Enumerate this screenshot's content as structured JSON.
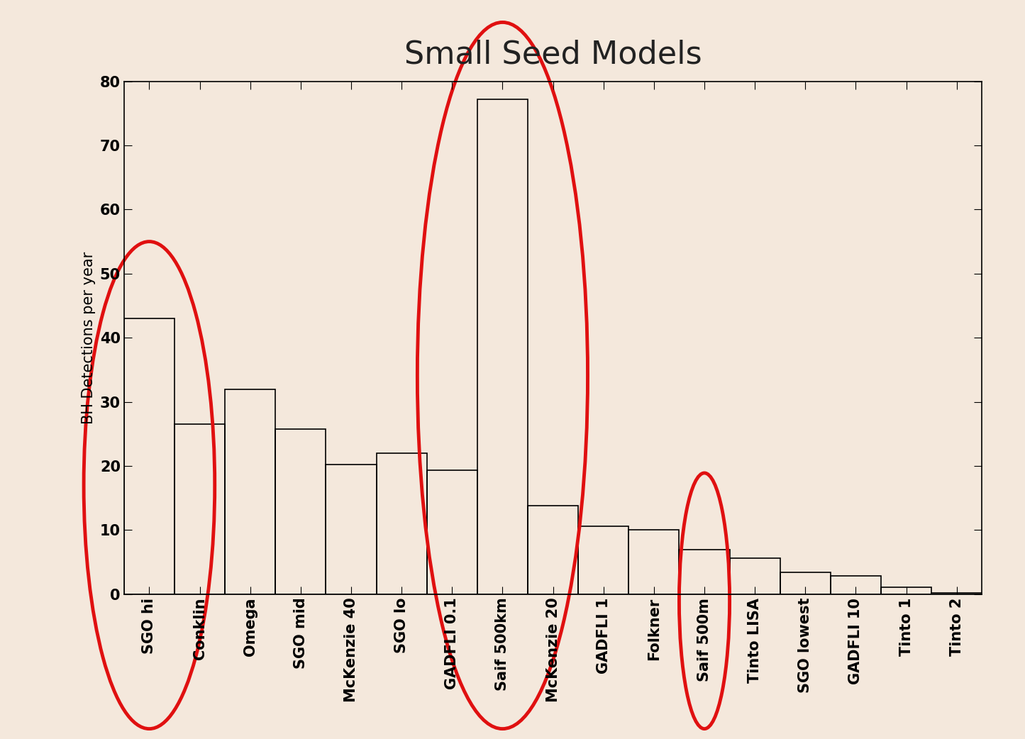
{
  "chart_data": {
    "type": "bar",
    "title": "Small Seed Models",
    "y_label": "BH Detections per year",
    "categories": [
      "SGO hi",
      "Conklin",
      "Omega",
      "SGO mid",
      "McKenzie 40",
      "SGO lo",
      "GADFLI 0.1",
      "Saif 500km",
      "McKenzie 20",
      "GADFLI 1",
      "Folkner",
      "Saif 500m",
      "Tinto LISA",
      "SGO lowest",
      "GADFLI 10",
      "Tinto 1",
      "Tinto 2"
    ],
    "values": [
      43,
      26.5,
      32,
      25.7,
      20.2,
      22,
      19.3,
      77.2,
      13.8,
      10.6,
      10,
      6.9,
      5.6,
      3.4,
      2.9,
      1.1,
      0.2
    ],
    "color": "#000000",
    "ylim": [
      0,
      80
    ],
    "yticks": [
      0,
      10,
      20,
      30,
      40,
      50,
      60,
      70,
      80
    ],
    "grid": false
  }
}
